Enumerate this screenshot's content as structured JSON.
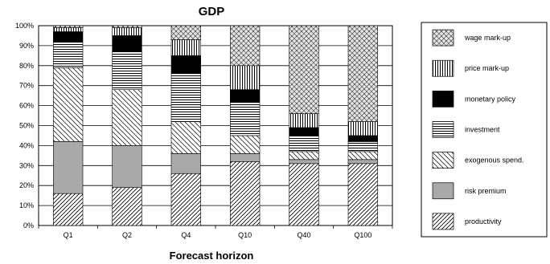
{
  "chart_data": {
    "type": "bar",
    "stacked": true,
    "normalized": true,
    "title": "GDP",
    "xlabel": "Forecast horizon",
    "ylabel": "",
    "ylim": [
      0,
      100
    ],
    "y_ticks": [
      "0%",
      "10%",
      "20%",
      "30%",
      "40%",
      "50%",
      "60%",
      "70%",
      "80%",
      "90%",
      "100%"
    ],
    "grid": true,
    "legend_position": "right",
    "categories": [
      "Q1",
      "Q2",
      "Q4",
      "Q10",
      "Q40",
      "Q100"
    ],
    "series": [
      {
        "name": "productivity",
        "pattern": "diag-fine",
        "values": [
          16,
          19,
          26,
          32,
          31,
          31
        ]
      },
      {
        "name": "risk premium",
        "pattern": "solid-gray",
        "values": [
          26,
          21,
          10,
          4,
          2,
          2
        ]
      },
      {
        "name": "exogenous spend.",
        "pattern": "diag-back",
        "values": [
          37,
          28,
          16,
          9,
          4,
          4
        ]
      },
      {
        "name": "investment",
        "pattern": "horizontal",
        "values": [
          13,
          19,
          24,
          17,
          8,
          5
        ]
      },
      {
        "name": "monetary policy",
        "pattern": "solid-black",
        "values": [
          5,
          8,
          9,
          6,
          4,
          3
        ]
      },
      {
        "name": "price mark-up",
        "pattern": "vertical",
        "values": [
          2,
          4,
          8,
          12,
          7,
          7
        ]
      },
      {
        "name": "wage mark-up",
        "pattern": "checker",
        "values": [
          1,
          1,
          7,
          20,
          44,
          48
        ]
      }
    ],
    "legend_order": [
      "wage mark-up",
      "price mark-up",
      "monetary policy",
      "investment",
      "exogenous spend.",
      "risk premium",
      "productivity"
    ]
  }
}
